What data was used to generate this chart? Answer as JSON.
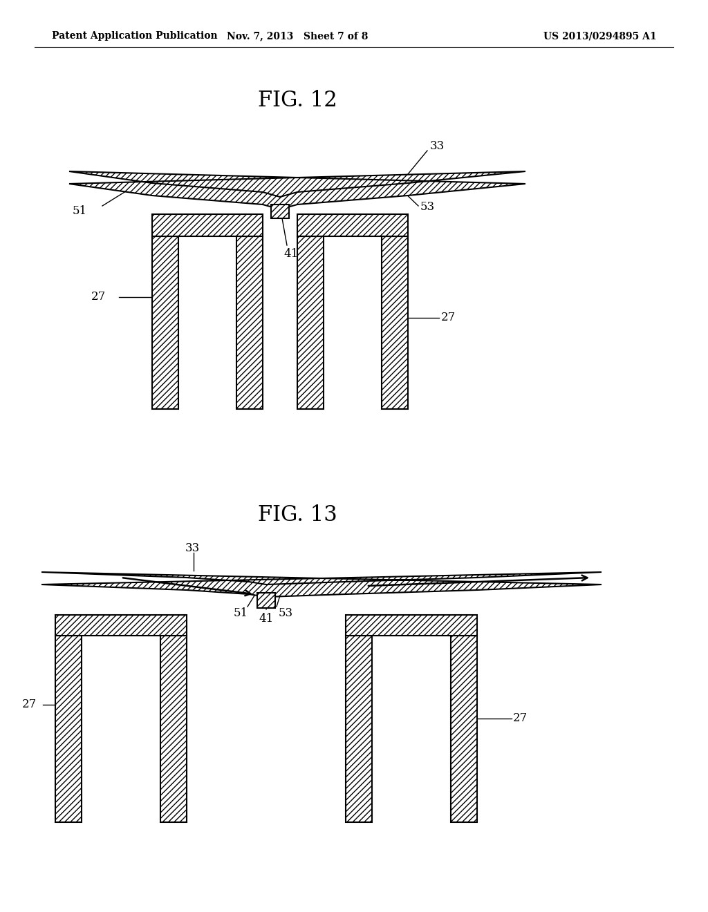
{
  "bg_color": "#ffffff",
  "line_color": "#000000",
  "header_left": "Patent Application Publication",
  "header_mid": "Nov. 7, 2013   Sheet 7 of 8",
  "header_right": "US 2013/0294895 A1",
  "fig12_title": "FIG. 12",
  "fig13_title": "FIG. 13"
}
